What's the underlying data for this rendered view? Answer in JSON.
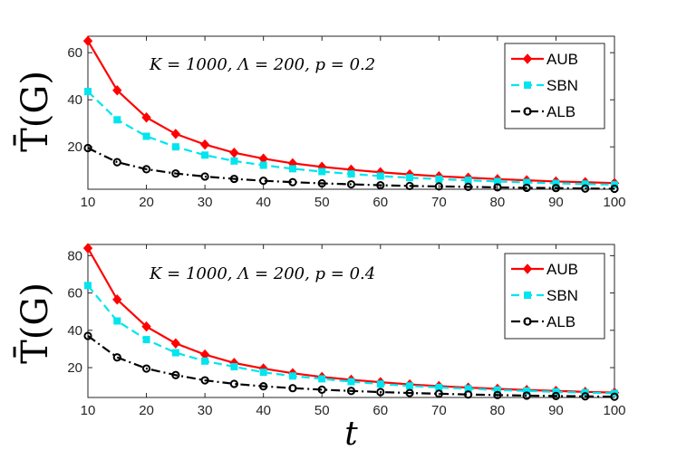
{
  "chart_data": [
    {
      "type": "line",
      "annotation": "K = 1000, Λ = 200, p = 0.2",
      "ylabel": "T̄(G)",
      "xlabel": "",
      "xlim": [
        10,
        100
      ],
      "ylim": [
        2,
        67
      ],
      "xticks": [
        10,
        20,
        30,
        40,
        50,
        60,
        70,
        80,
        90,
        100
      ],
      "yticks": [
        20,
        40,
        60
      ],
      "x": [
        10,
        15,
        20,
        25,
        30,
        35,
        40,
        45,
        50,
        55,
        60,
        65,
        70,
        75,
        80,
        85,
        90,
        95,
        100
      ],
      "legend_position": "top-right",
      "series": [
        {
          "name": "AUB",
          "color": "#ff0000",
          "marker": "diamond",
          "style": "solid",
          "values": [
            65,
            44,
            32.5,
            25.5,
            21,
            17.5,
            15,
            13,
            11.5,
            10.3,
            9.2,
            8.3,
            7.5,
            6.9,
            6.3,
            5.8,
            5.3,
            5.0,
            4.6
          ]
        },
        {
          "name": "SBN",
          "color": "#00e5ee",
          "marker": "square",
          "style": "dashed",
          "values": [
            43.5,
            31.5,
            24.5,
            20,
            16.5,
            14,
            12.2,
            10.7,
            9.5,
            8.5,
            7.6,
            6.9,
            6.3,
            5.8,
            5.3,
            4.9,
            4.5,
            4.2,
            3.9
          ]
        },
        {
          "name": "ALB",
          "color": "#000000",
          "marker": "circle",
          "style": "dashdot",
          "values": [
            19.5,
            13.5,
            10.5,
            8.7,
            7.4,
            6.4,
            5.6,
            5.0,
            4.5,
            4.1,
            3.7,
            3.4,
            3.2,
            3.0,
            2.8,
            2.6,
            2.5,
            2.3,
            2.2
          ]
        }
      ]
    },
    {
      "type": "line",
      "annotation": "K = 1000, Λ = 200, p = 0.4",
      "ylabel": "T̄(G)",
      "xlabel": "t",
      "xlim": [
        10,
        100
      ],
      "ylim": [
        4,
        86
      ],
      "xticks": [
        10,
        20,
        30,
        40,
        50,
        60,
        70,
        80,
        90,
        100
      ],
      "yticks": [
        20,
        40,
        60,
        80
      ],
      "x": [
        10,
        15,
        20,
        25,
        30,
        35,
        40,
        45,
        50,
        55,
        60,
        65,
        70,
        75,
        80,
        85,
        90,
        95,
        100
      ],
      "legend_position": "top-right",
      "series": [
        {
          "name": "AUB",
          "color": "#ff0000",
          "marker": "diamond",
          "style": "solid",
          "values": [
            84,
            56.5,
            42,
            33,
            27,
            22.5,
            19.5,
            17,
            15,
            13.5,
            12.2,
            11,
            10.1,
            9.3,
            8.6,
            8.0,
            7.5,
            7.0,
            6.6
          ]
        },
        {
          "name": "SBN",
          "color": "#00e5ee",
          "marker": "square",
          "style": "dashed",
          "values": [
            64,
            45,
            35,
            28,
            23.5,
            20.5,
            17.5,
            15.5,
            14,
            12.5,
            11.2,
            10.2,
            9.4,
            8.7,
            8.0,
            7.5,
            7.0,
            6.6,
            6.2
          ]
        },
        {
          "name": "ALB",
          "color": "#000000",
          "marker": "circle",
          "style": "dashdot",
          "values": [
            37,
            25.5,
            19.5,
            16,
            13.2,
            11.3,
            10,
            9,
            8.2,
            7.5,
            6.9,
            6.4,
            6.0,
            5.6,
            5.3,
            5.0,
            4.8,
            4.6,
            4.4
          ]
        }
      ]
    }
  ]
}
